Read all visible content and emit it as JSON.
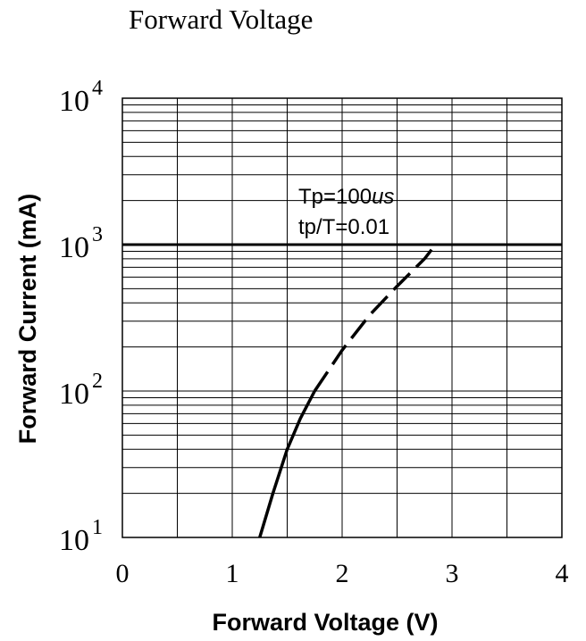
{
  "chart_data": {
    "type": "line",
    "title": "Forward Voltage",
    "xlabel": "Forward Voltage (V)",
    "ylabel": "Forward Current (mA)",
    "xlim": [
      0,
      4
    ],
    "ylim": [
      10,
      10000
    ],
    "y_scale": "log",
    "grid": true,
    "x_ticks": [
      "0",
      "1",
      "2",
      "3",
      "4"
    ],
    "y_ticks": [
      {
        "value": 10,
        "base": "10",
        "exp": "1"
      },
      {
        "value": 100,
        "base": "10",
        "exp": "2"
      },
      {
        "value": 1000,
        "base": "10",
        "exp": "3"
      },
      {
        "value": 10000,
        "base": "10",
        "exp": "4"
      }
    ],
    "annotations": [
      "Tp=100",
      "us",
      "tp/T=0.01"
    ],
    "reference_line": {
      "y": 1000
    },
    "series": [
      {
        "x": [
          1.25,
          1.37,
          1.5,
          1.62,
          1.75,
          2.0,
          2.25,
          2.5,
          2.75,
          2.85
        ],
        "y": [
          10,
          20,
          40,
          65,
          100,
          190,
          330,
          520,
          800,
          1000
        ],
        "style": "solid-then-dashed"
      }
    ]
  }
}
